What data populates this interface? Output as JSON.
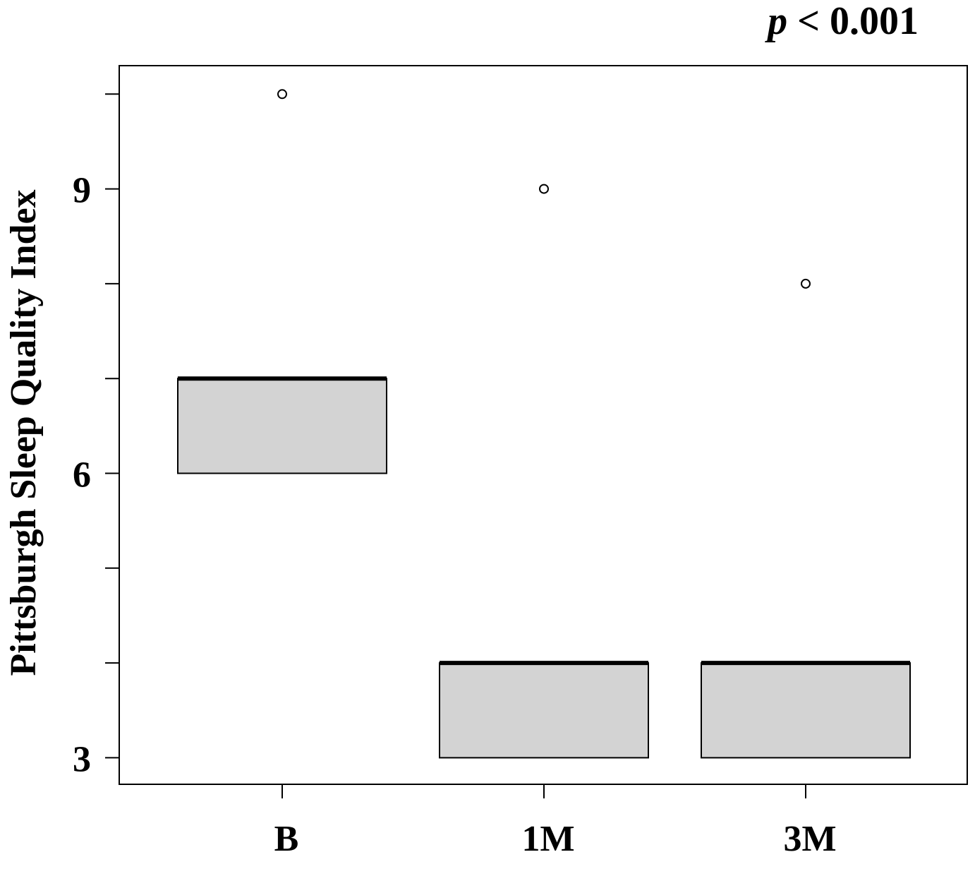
{
  "chart_data": {
    "type": "box",
    "title": "",
    "annotation": {
      "italic_part": "p",
      "rest": " < 0.001"
    },
    "xlabel": "",
    "ylabel": "Pittsburgh Sleep Quality Index",
    "categories": [
      "B",
      "1M",
      "3M"
    ],
    "ylim": [
      2.72,
      10.3
    ],
    "yticks": [
      3,
      4,
      5,
      6,
      7,
      8,
      9,
      10
    ],
    "ytick_labels": [
      "3",
      "",
      "",
      "6",
      "",
      "",
      "9",
      ""
    ],
    "boxes": [
      {
        "category": "B",
        "q1": 6,
        "median": 7,
        "q3": 7,
        "whisker_low": 6,
        "whisker_high": 7,
        "outliers": [
          10
        ]
      },
      {
        "category": "1M",
        "q1": 3,
        "median": 4,
        "q3": 4,
        "whisker_low": 3,
        "whisker_high": 4,
        "outliers": [
          9
        ]
      },
      {
        "category": "3M",
        "q1": 3,
        "median": 4,
        "q3": 4,
        "whisker_low": 3,
        "whisker_high": 4,
        "outliers": [
          8
        ]
      }
    ],
    "colors": {
      "box_fill": "#d3d3d3",
      "stroke": "#000000"
    },
    "grid": false,
    "legend": "none"
  }
}
